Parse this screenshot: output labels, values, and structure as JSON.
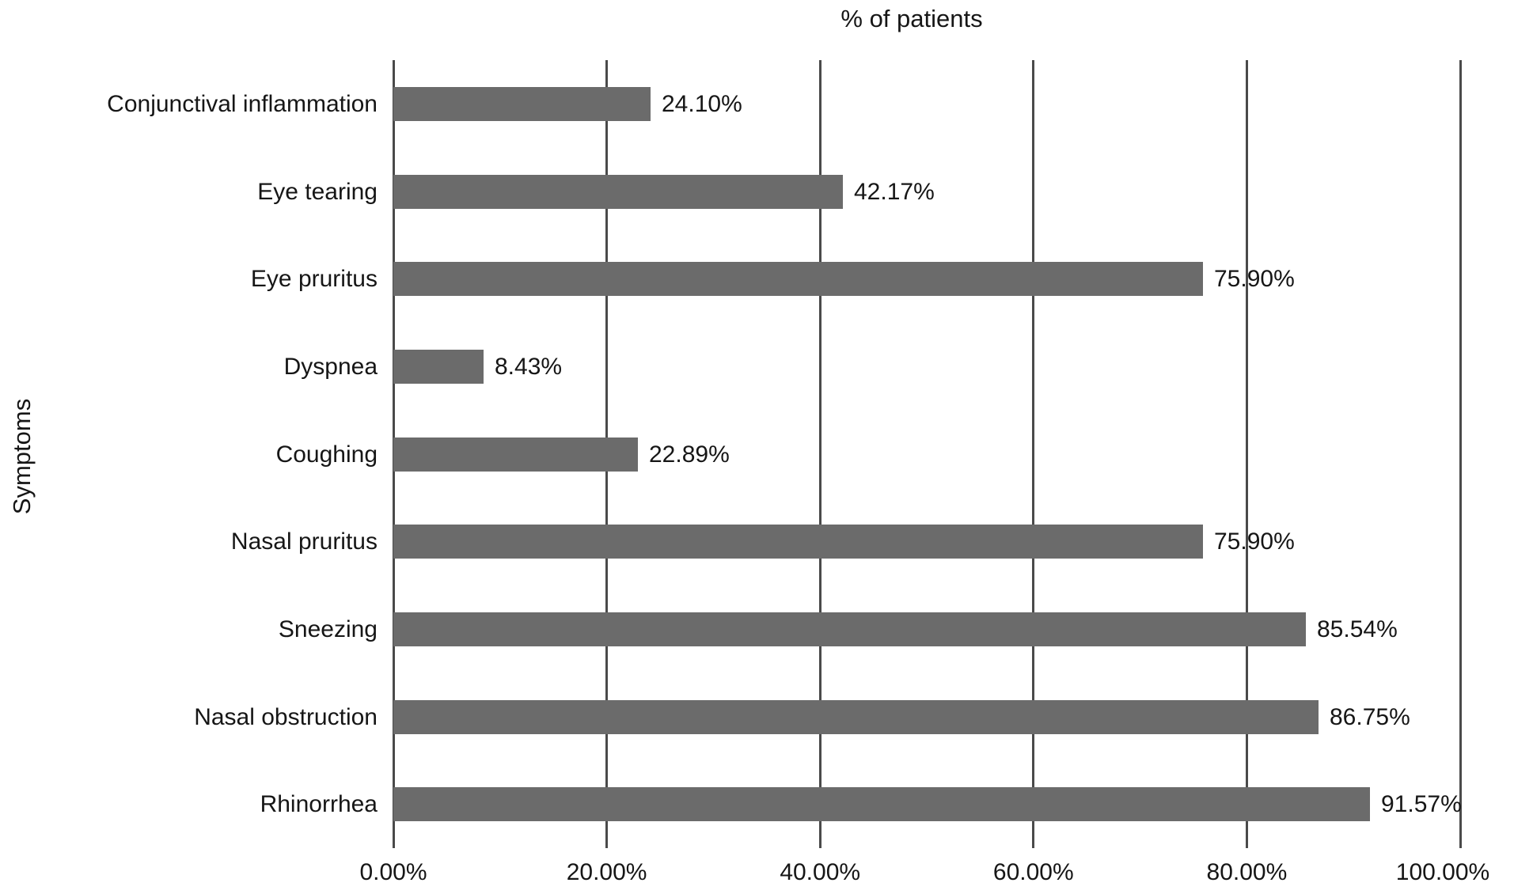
{
  "chart_data": {
    "type": "bar",
    "orientation": "horizontal",
    "title": "% of patients",
    "xlabel": "",
    "ylabel": "Symptoms",
    "categories": [
      "Conjunctival inflammation",
      "Eye tearing",
      "Eye pruritus",
      "Dyspnea",
      "Coughing",
      "Nasal pruritus",
      "Sneezing",
      "Nasal obstruction",
      "Rhinorrhea"
    ],
    "values": [
      24.1,
      42.17,
      75.9,
      8.43,
      22.89,
      75.9,
      85.54,
      86.75,
      91.57
    ],
    "value_labels": [
      "24.10%",
      "42.17%",
      "75.90%",
      "8.43%",
      "22.89%",
      "75.90%",
      "85.54%",
      "86.75%",
      "91.57%"
    ],
    "x_ticks": [
      0,
      20,
      40,
      60,
      80,
      100
    ],
    "x_tick_labels": [
      "0.00%",
      "20.00%",
      "40.00%",
      "60.00%",
      "80.00%",
      "100.00%"
    ],
    "xlim": [
      0,
      100
    ],
    "grid": true,
    "legend": false,
    "bar_color": "#6b6b6b",
    "gridline_color": "#4a4a4a",
    "text_color": "#161616",
    "background_color": "#ffffff"
  }
}
